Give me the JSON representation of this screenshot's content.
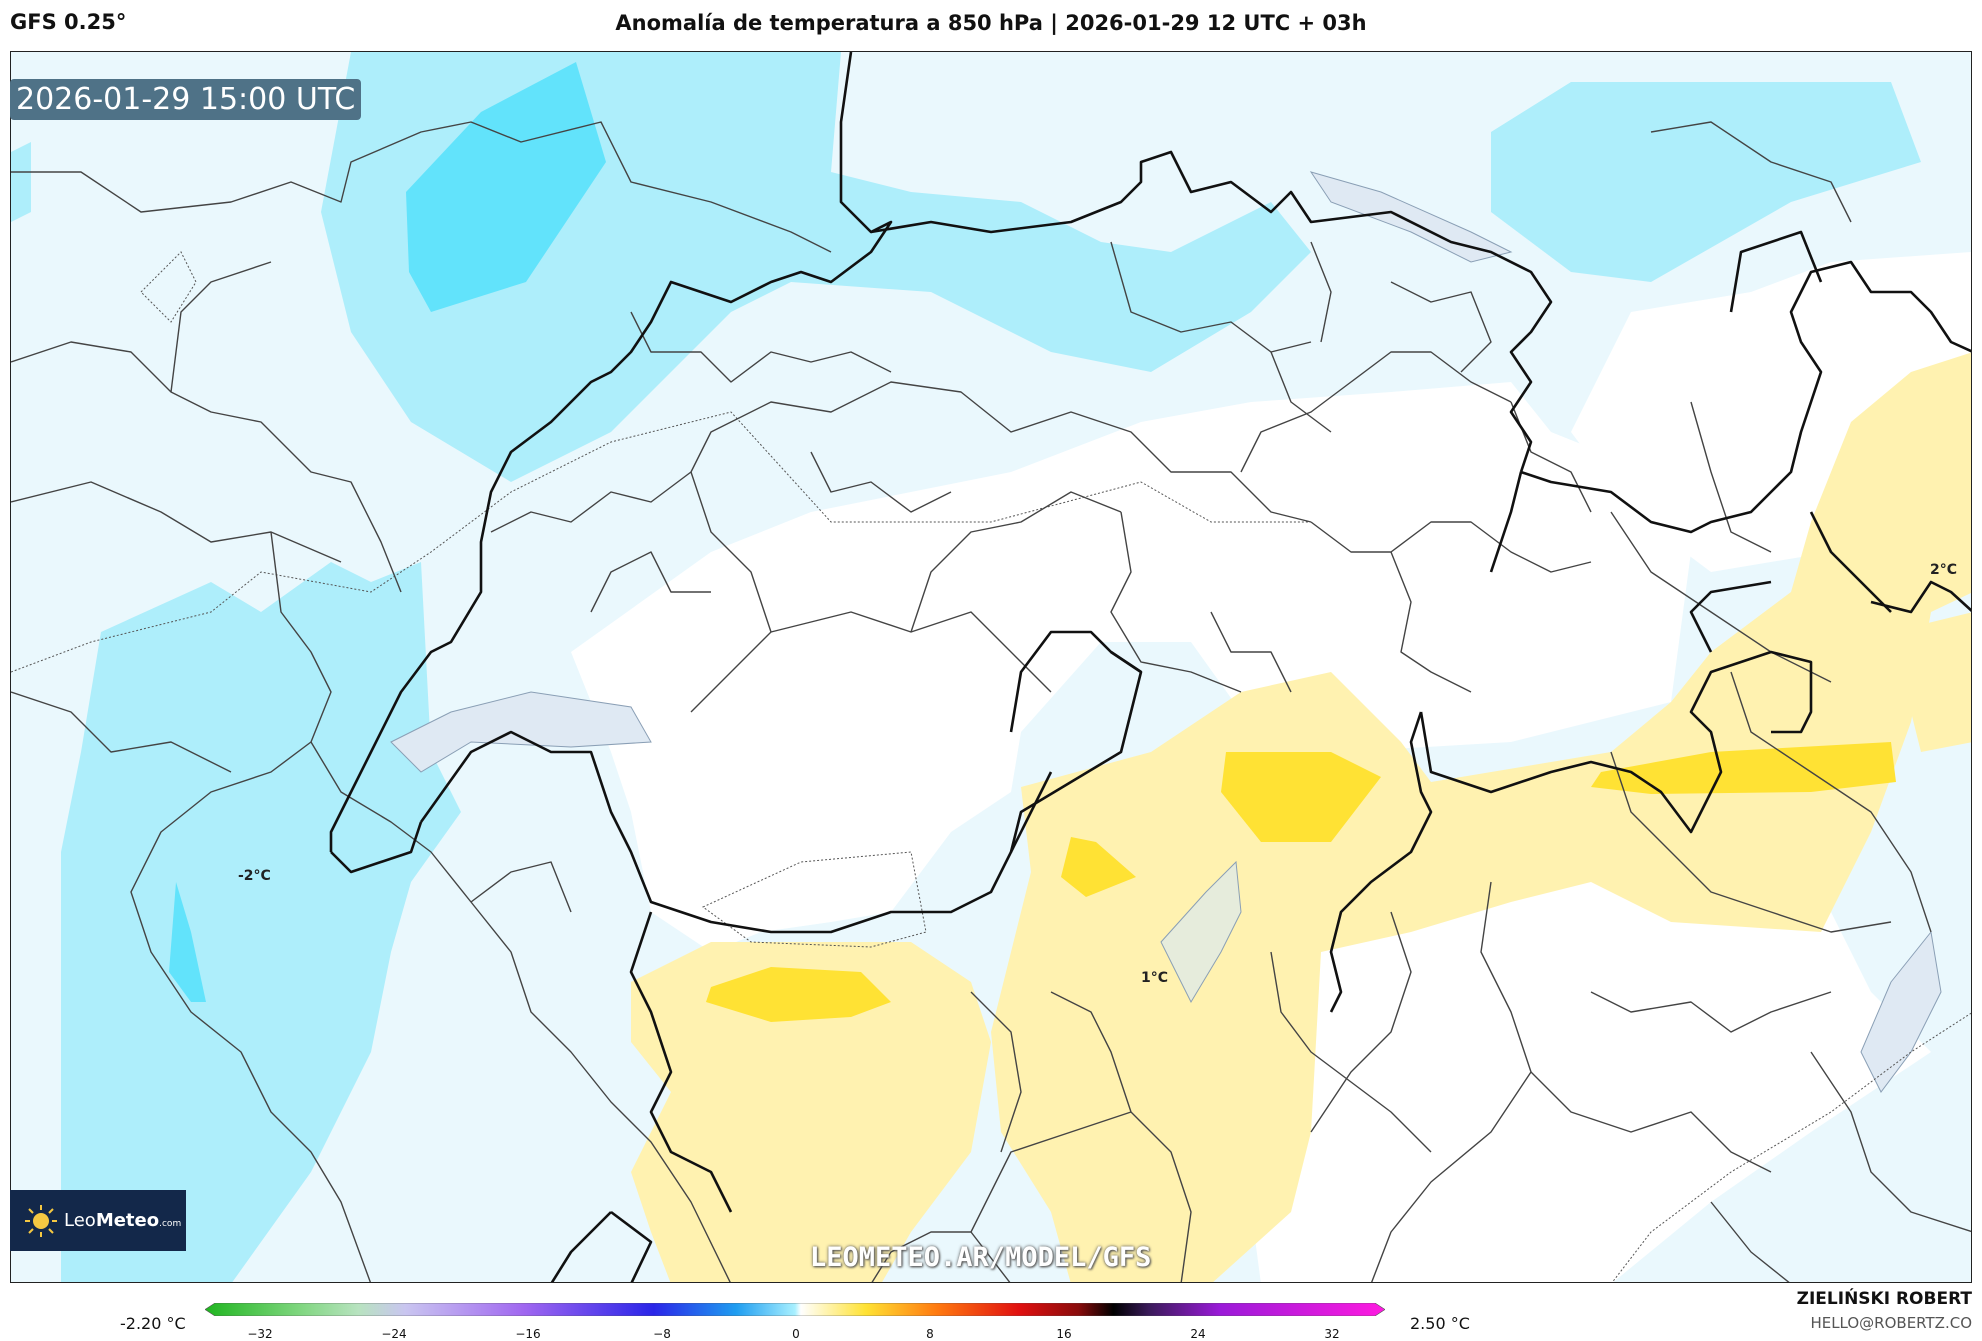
{
  "header": {
    "model": "GFS 0.25°",
    "title": "Anomalía de temperatura a 850 hPa | 2026-01-29 12 UTC + 03h"
  },
  "map": {
    "timestamp": "2026-01-29 15:00 UTC",
    "contour_labels": [
      "-2°C",
      "1°C",
      "2°C"
    ],
    "watermark": "LEOMETEO.AR/MODEL/GFS",
    "logo": {
      "name": "LeoMeteo",
      "brand_a": "Leo",
      "brand_b": "Meteo",
      "suffix": ".com"
    },
    "colors": {
      "very_light_blue": "#eaf8fd",
      "light_blue": "#aeeefb",
      "mid_blue": "#62e3fb",
      "light_yellow": "#fff2b0",
      "yellow": "#ffe234",
      "border": "#111111",
      "region": "#444444"
    }
  },
  "legend": {
    "min_label": "-2.20 °C",
    "max_label": "2.50 °C",
    "ticks": [
      "−32",
      "−24",
      "−16",
      "−8",
      "0",
      "8",
      "16",
      "24",
      "32"
    ]
  },
  "credits": {
    "author": "ZIELIŃSKI ROBERT",
    "email": "HELLO@ROBERTZ.CO"
  }
}
